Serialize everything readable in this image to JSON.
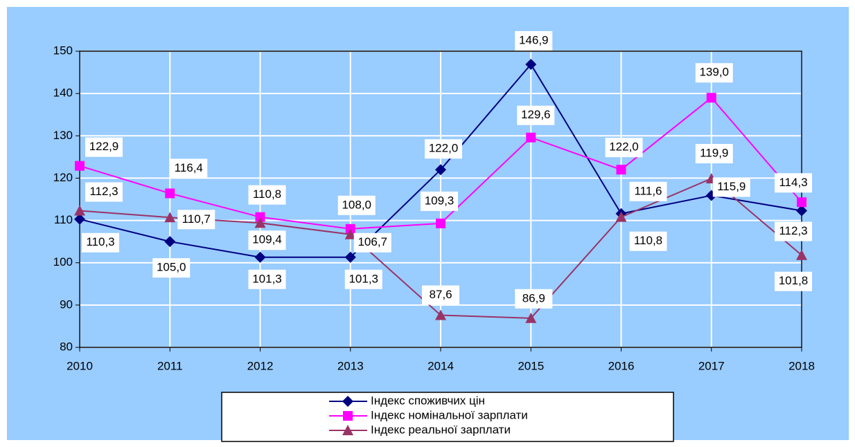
{
  "chart_data": {
    "type": "line",
    "categories": [
      "2010",
      "2011",
      "2012",
      "2013",
      "2014",
      "2015",
      "2016",
      "2017",
      "2018"
    ],
    "series": [
      {
        "name": "Індекс споживчих цін",
        "color": "#000080",
        "marker": "diamond",
        "values": [
          110.3,
          105.0,
          101.3,
          101.3,
          122.0,
          146.9,
          111.6,
          115.9,
          112.3
        ],
        "value_labels": [
          "110,3",
          "105,0",
          "101,3",
          "101,3",
          "122,0",
          "146,9",
          "111,6",
          "115,9",
          "112,3"
        ]
      },
      {
        "name": "Індекс номінальної зарплати",
        "color": "#ff00ff",
        "marker": "square",
        "values": [
          122.9,
          116.4,
          110.8,
          108.0,
          109.3,
          129.6,
          122.0,
          139.0,
          114.3
        ],
        "value_labels": [
          "122,9",
          "116,4",
          "110,8",
          "108,0",
          "109,3",
          "129,6",
          "122,0",
          "139,0",
          "114,3"
        ]
      },
      {
        "name": "Індекс реальної зарплати",
        "color": "#993366",
        "marker": "triangle",
        "values": [
          112.3,
          110.7,
          109.4,
          106.7,
          87.6,
          86.9,
          110.8,
          119.9,
          101.8
        ],
        "value_labels": [
          "112,3",
          "110,7",
          "109,4",
          "106,7",
          "87,6",
          "86,9",
          "110,8",
          "119,9",
          "101,8"
        ]
      }
    ],
    "ylim": [
      80,
      150
    ],
    "yticks": [
      80,
      90,
      100,
      110,
      120,
      130,
      140,
      150
    ],
    "grid": true,
    "legend": "bottom"
  }
}
